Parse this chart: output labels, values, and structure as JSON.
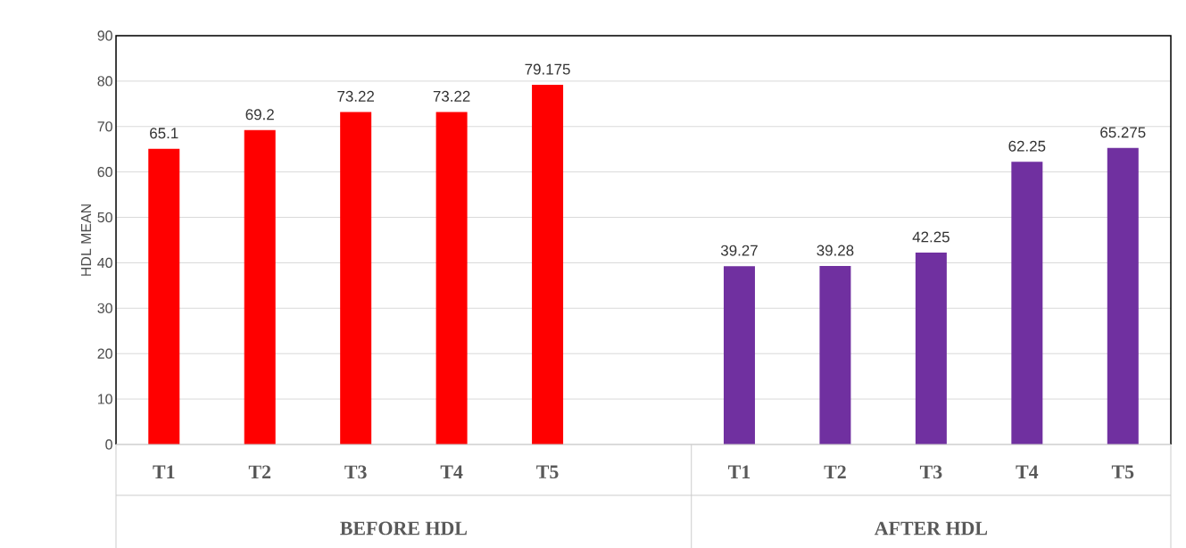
{
  "chart_data": {
    "type": "bar",
    "ylabel": "HDL MEAN",
    "categories": [
      "T1",
      "T2",
      "T3",
      "T4",
      "T5",
      null,
      "T1",
      "T2",
      "T3",
      "T4",
      "T5"
    ],
    "values": [
      65.1,
      69.2,
      73.22,
      73.22,
      79.175,
      null,
      39.27,
      39.28,
      42.25,
      62.25,
      65.275
    ],
    "colors": [
      "#ff0000",
      "#ff0000",
      "#ff0000",
      "#ff0000",
      "#ff0000",
      null,
      "#7030a0",
      "#7030a0",
      "#7030a0",
      "#7030a0",
      "#7030a0"
    ],
    "annotations": [
      "BEFORE HDL",
      "AFTER HDL"
    ],
    "ylim": [
      0,
      90
    ],
    "yticks": [
      0,
      10,
      20,
      30,
      40,
      50,
      60,
      70,
      80,
      90
    ],
    "grid": "y",
    "data_labels": true
  }
}
